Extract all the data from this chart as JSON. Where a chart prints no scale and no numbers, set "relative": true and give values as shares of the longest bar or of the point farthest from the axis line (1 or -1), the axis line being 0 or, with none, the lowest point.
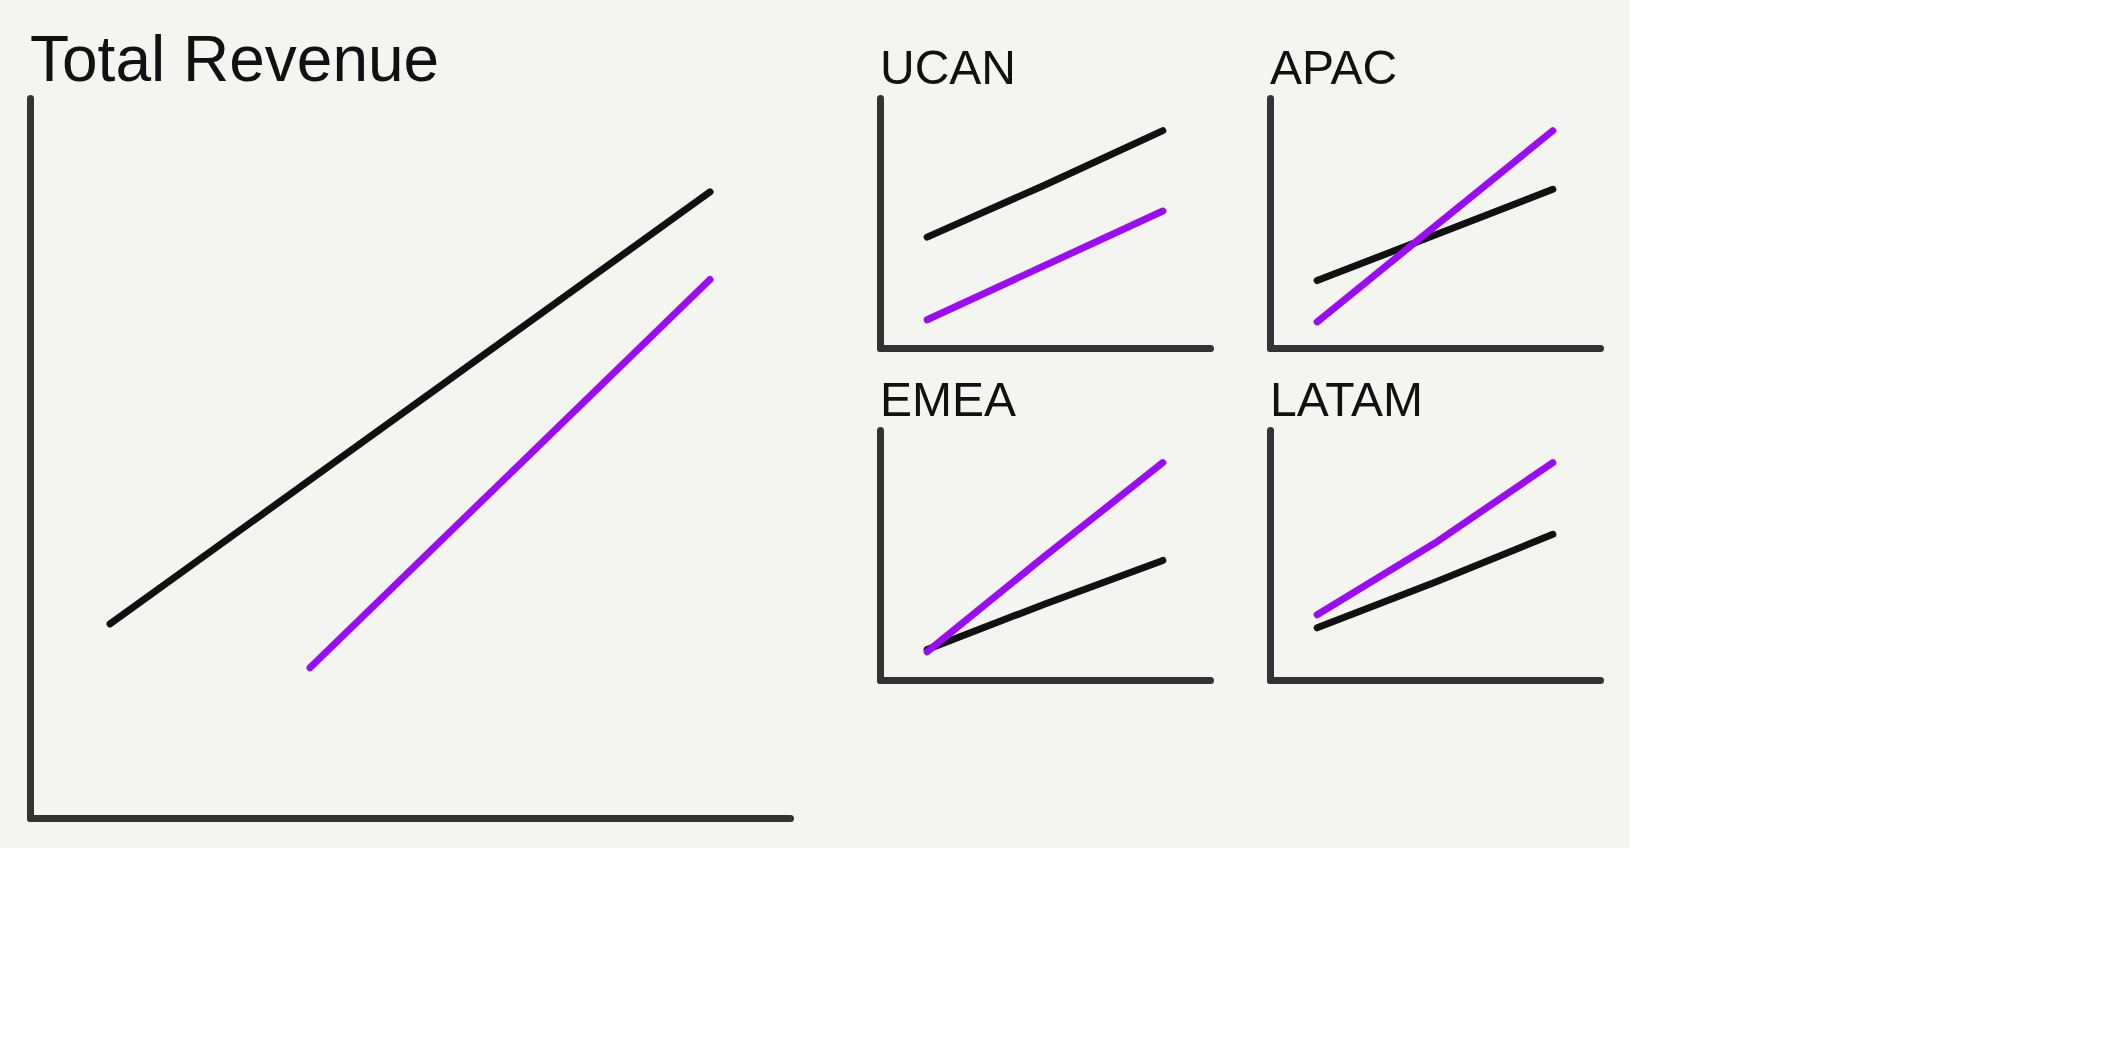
{
  "chart_data": [
    {
      "type": "line",
      "title": "Total Revenue",
      "relative": true,
      "tick_labels": false,
      "categories": [
        null,
        null,
        null,
        null
      ],
      "series": [
        {
          "color": "#111111",
          "values": [
            0.31,
            0.54,
            0.77,
            1.0
          ]
        },
        {
          "color": "#9b0cf5",
          "values": [
            null,
            0.24,
            0.55,
            0.86
          ]
        }
      ]
    },
    {
      "type": "line",
      "title": "UCAN",
      "relative": true,
      "tick_labels": false,
      "categories": [
        null,
        null,
        null
      ],
      "series": [
        {
          "color": "#111111",
          "values": [
            0.51,
            0.75,
            1.0
          ]
        },
        {
          "color": "#9b0cf5",
          "values": [
            0.13,
            0.38,
            0.63
          ]
        }
      ]
    },
    {
      "type": "line",
      "title": "APAC",
      "relative": true,
      "tick_labels": false,
      "categories": [
        null,
        null,
        null
      ],
      "series": [
        {
          "color": "#111111",
          "values": [
            0.31,
            0.52,
            0.73
          ]
        },
        {
          "color": "#9b0cf5",
          "values": [
            0.12,
            0.56,
            1.0
          ]
        }
      ]
    },
    {
      "type": "line",
      "title": "EMEA",
      "relative": true,
      "tick_labels": false,
      "categories": [
        null,
        null,
        null
      ],
      "series": [
        {
          "color": "#111111",
          "values": [
            0.14,
            0.35,
            0.55
          ]
        },
        {
          "color": "#9b0cf5",
          "values": [
            0.13,
            0.57,
            1.0
          ]
        }
      ]
    },
    {
      "type": "line",
      "title": "LATAM",
      "relative": true,
      "tick_labels": false,
      "categories": [
        null,
        null,
        null
      ],
      "series": [
        {
          "color": "#111111",
          "values": [
            0.24,
            0.45,
            0.67
          ]
        },
        {
          "color": "#9b0cf5",
          "values": [
            0.3,
            0.63,
            1.0
          ]
        }
      ]
    }
  ]
}
